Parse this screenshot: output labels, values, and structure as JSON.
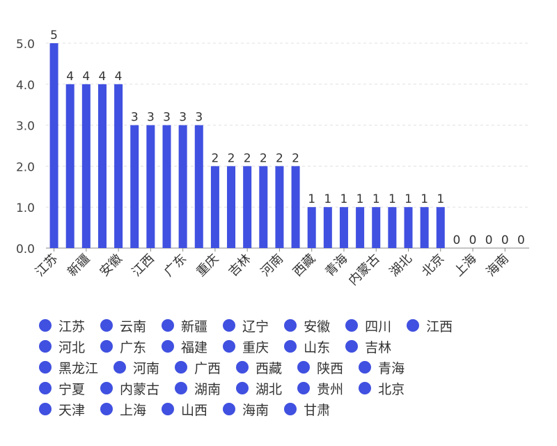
{
  "chart_data": {
    "type": "bar",
    "categories": [
      "江苏",
      "云南",
      "新疆",
      "辽宁",
      "安徽",
      "四川",
      "江西",
      "河北",
      "广东",
      "福建",
      "重庆",
      "山东",
      "吉林",
      "黑龙江",
      "河南",
      "广西",
      "西藏",
      "陕西",
      "青海",
      "宁夏",
      "内蒙古",
      "湖南",
      "湖北",
      "贵州",
      "北京",
      "天津",
      "上海",
      "山西",
      "海南",
      "甘肃"
    ],
    "values": [
      5,
      4,
      4,
      4,
      4,
      3,
      3,
      3,
      3,
      3,
      2,
      2,
      2,
      2,
      2,
      2,
      1,
      1,
      1,
      1,
      1,
      1,
      1,
      1,
      1,
      0,
      0,
      0,
      0,
      0
    ],
    "x_tick_labels": [
      "江苏",
      "新疆",
      "安徽",
      "江西",
      "广东",
      "重庆",
      "吉林",
      "河南",
      "西藏",
      "青海",
      "内蒙古",
      "湖北",
      "北京",
      "上海",
      "海南"
    ],
    "y_ticks": [
      "0.0",
      "1.0",
      "2.0",
      "3.0",
      "4.0",
      "5.0"
    ],
    "ylim": [
      0,
      5
    ],
    "grid": true,
    "legend_position": "bottom",
    "bar_color": "#4050e0"
  }
}
